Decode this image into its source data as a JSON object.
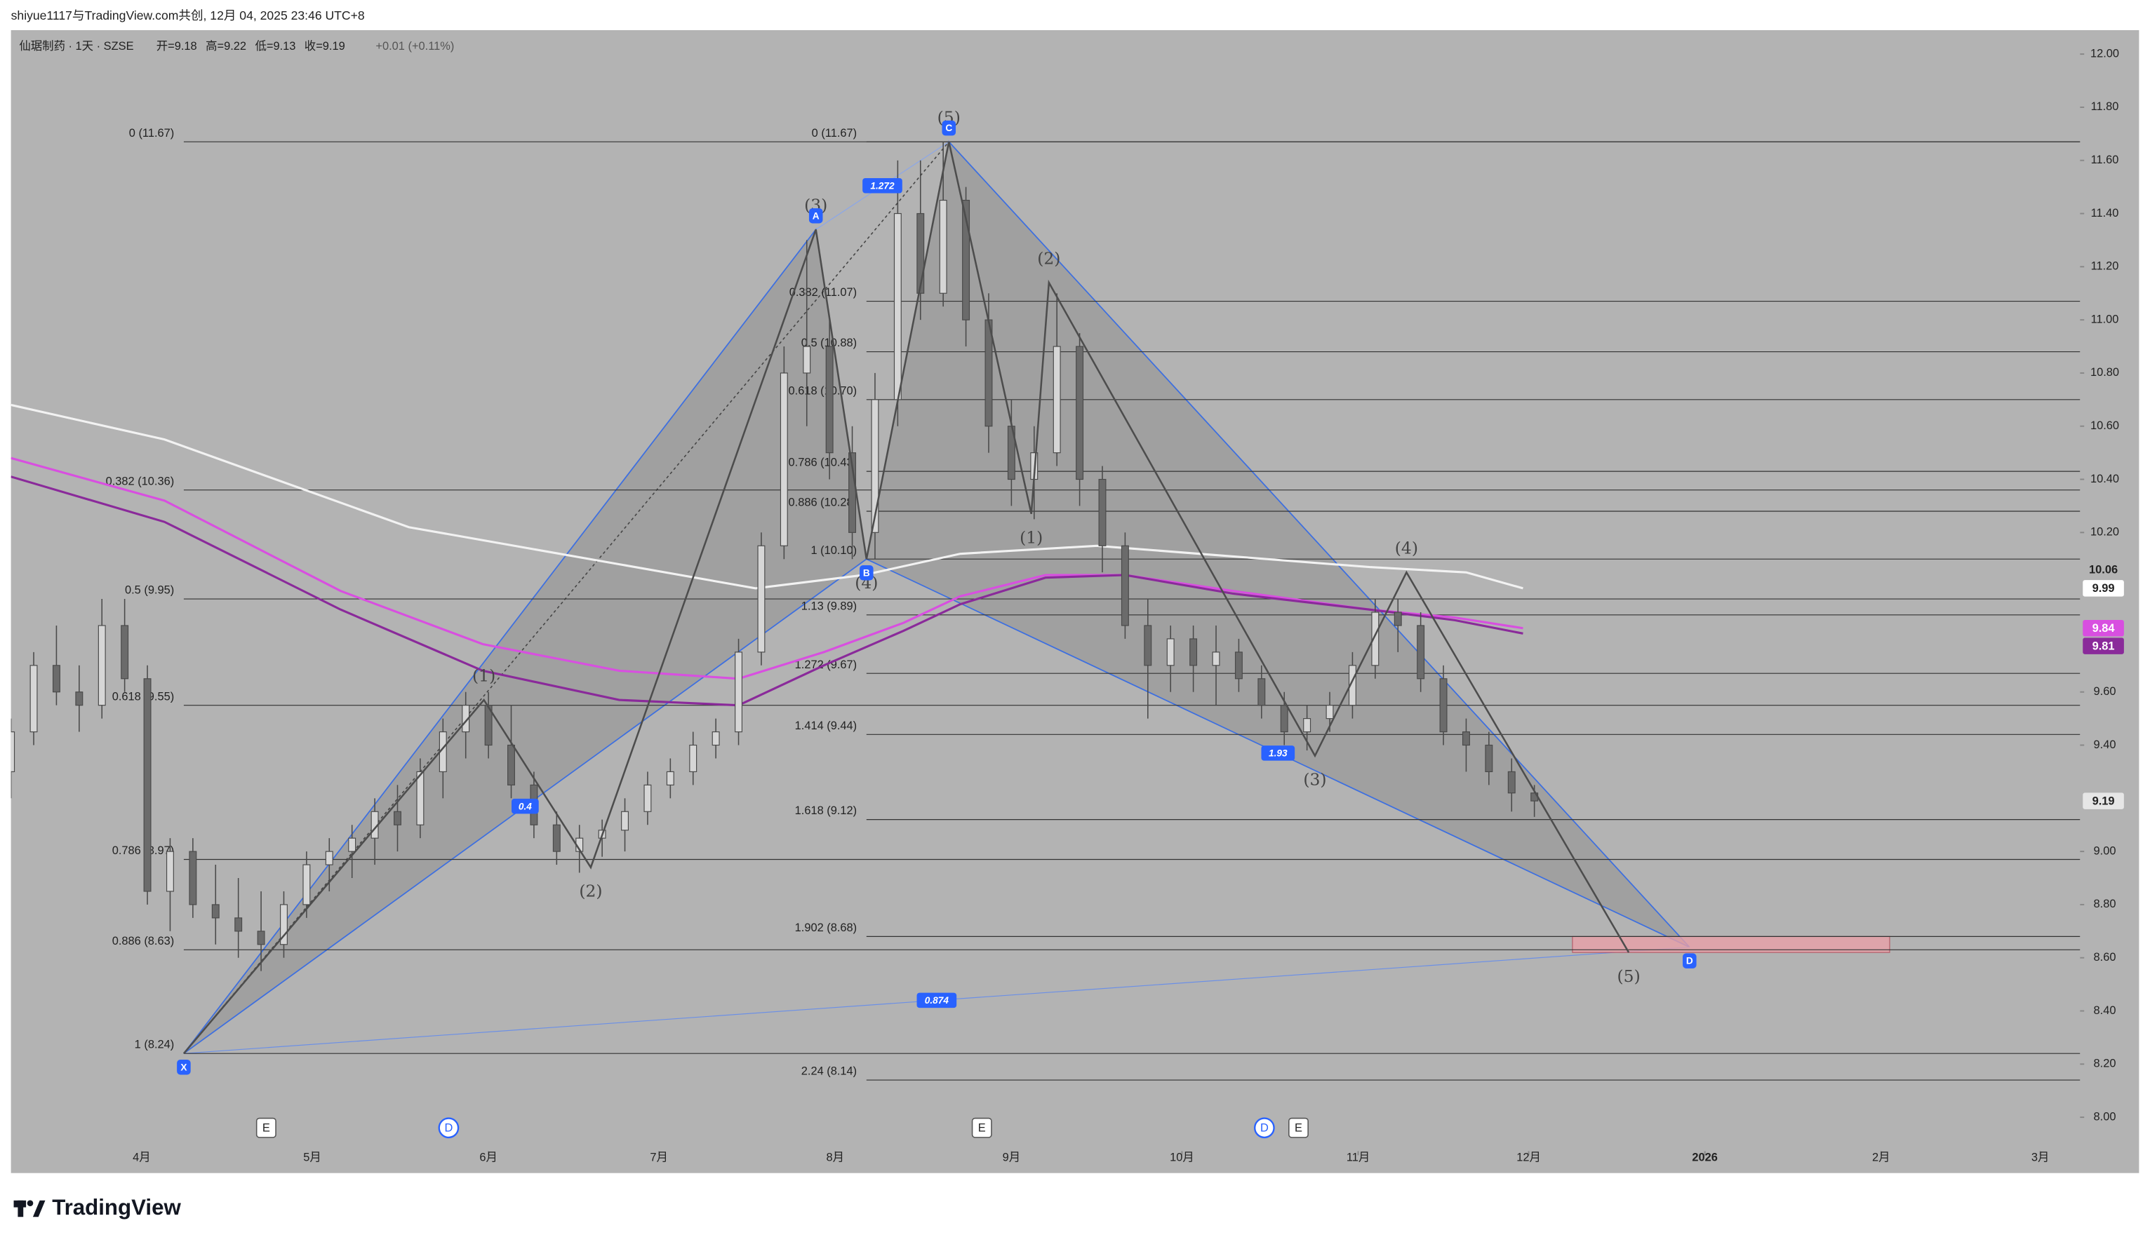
{
  "header": {
    "attribution": "shiyue1117与TradingView.com共创, 12月 04, 2025 23:46 UTC+8",
    "symbol": "仙琚制药 · 1天 · SZSE",
    "open": "开=9.18",
    "high": "高=9.22",
    "low": "低=9.13",
    "close": "收=9.19",
    "change": "+0.01 (+0.11%)"
  },
  "logo": "TradingView",
  "chart_data": {
    "type": "candlestick",
    "xlim": [
      68,
      432
    ],
    "ylim": [
      7.79,
      12.09
    ],
    "yticks": [
      {
        "value": 12,
        "label": "12.00"
      },
      {
        "value": 11.8,
        "label": "11.80"
      },
      {
        "value": 11.6,
        "label": "11.60"
      },
      {
        "value": 11.4,
        "label": "11.40"
      },
      {
        "value": 11.2,
        "label": "11.20"
      },
      {
        "value": 11,
        "label": "11.00"
      },
      {
        "value": 10.8,
        "label": "10.80"
      },
      {
        "value": 10.6,
        "label": "10.60"
      },
      {
        "value": 10.4,
        "label": "10.40"
      },
      {
        "value": 10.2,
        "label": "10.20"
      },
      {
        "value": 9.6,
        "label": "9.60"
      },
      {
        "value": 9.4,
        "label": "9.40"
      },
      {
        "value": 9,
        "label": "9.00"
      },
      {
        "value": 8.8,
        "label": "8.80"
      },
      {
        "value": 8.6,
        "label": "8.60"
      },
      {
        "value": 8.4,
        "label": "8.40"
      },
      {
        "value": 8.2,
        "label": "8.20"
      },
      {
        "value": 8,
        "label": "8.00"
      }
    ],
    "xticks": [
      {
        "value": 91,
        "label": "4月"
      },
      {
        "value": 121,
        "label": "5月"
      },
      {
        "value": 152,
        "label": "6月"
      },
      {
        "value": 182,
        "label": "7月"
      },
      {
        "value": 213,
        "label": "8月"
      },
      {
        "value": 244,
        "label": "9月"
      },
      {
        "value": 274,
        "label": "10月"
      },
      {
        "value": 305,
        "label": "11月"
      },
      {
        "value": 335,
        "label": "12月"
      },
      {
        "value": 366,
        "label": "2026",
        "bold": true
      },
      {
        "value": 397,
        "label": "2月"
      },
      {
        "value": 425,
        "label": "3月"
      }
    ],
    "candles": {
      "up_color": "#d6d6d6",
      "down_color": "#6b6b6b",
      "outline": "#4a4a4a",
      "x": [
        68,
        72,
        76,
        80,
        84,
        88,
        92,
        96,
        100,
        104,
        108,
        112,
        116,
        120,
        124,
        128,
        132,
        136,
        140,
        144,
        148,
        152,
        156,
        160,
        164,
        168,
        172,
        176,
        180,
        184,
        188,
        192,
        196,
        200,
        204,
        208,
        212,
        216,
        220,
        224,
        228,
        232,
        236,
        240,
        244,
        248,
        252,
        256,
        260,
        264,
        268,
        272,
        276,
        280,
        284,
        288,
        292,
        296,
        300,
        304,
        308,
        312,
        316,
        320,
        324,
        328,
        332,
        336
      ],
      "open": [
        9.3,
        9.45,
        9.7,
        9.6,
        9.55,
        9.85,
        9.65,
        8.85,
        9.0,
        8.8,
        8.75,
        8.7,
        8.65,
        8.8,
        8.95,
        9.0,
        9.05,
        9.15,
        9.1,
        9.3,
        9.45,
        9.55,
        9.4,
        9.25,
        9.1,
        9.0,
        9.05,
        9.08,
        9.15,
        9.25,
        9.3,
        9.4,
        9.45,
        9.75,
        10.15,
        10.8,
        10.9,
        10.5,
        10.2,
        10.7,
        11.4,
        11.1,
        11.45,
        11.0,
        10.6,
        10.4,
        10.5,
        10.9,
        10.4,
        10.15,
        9.85,
        9.7,
        9.8,
        9.7,
        9.75,
        9.65,
        9.55,
        9.45,
        9.5,
        9.55,
        9.7,
        9.9,
        9.85,
        9.65,
        9.45,
        9.4,
        9.3,
        9.22
      ],
      "high": [
        9.5,
        9.75,
        9.85,
        9.7,
        9.95,
        9.95,
        9.7,
        9.05,
        9.05,
        8.95,
        8.9,
        8.85,
        8.85,
        9.0,
        9.05,
        9.1,
        9.2,
        9.25,
        9.35,
        9.5,
        9.6,
        9.6,
        9.55,
        9.3,
        9.15,
        9.1,
        9.12,
        9.2,
        9.3,
        9.35,
        9.45,
        9.5,
        9.8,
        10.2,
        10.9,
        11.3,
        11.0,
        10.6,
        10.8,
        11.6,
        11.6,
        11.67,
        11.5,
        11.1,
        10.7,
        10.6,
        11.1,
        10.95,
        10.45,
        10.2,
        9.95,
        9.85,
        9.85,
        9.85,
        9.8,
        9.7,
        9.6,
        9.55,
        9.6,
        9.75,
        9.95,
        9.95,
        9.9,
        9.7,
        9.5,
        9.45,
        9.35,
        9.25
      ],
      "low": [
        9.2,
        9.4,
        9.55,
        9.45,
        9.5,
        9.6,
        8.8,
        8.7,
        8.75,
        8.65,
        8.6,
        8.55,
        8.6,
        8.75,
        8.85,
        8.9,
        8.95,
        9.0,
        9.05,
        9.2,
        9.35,
        9.35,
        9.2,
        9.05,
        8.95,
        8.92,
        8.98,
        9.0,
        9.1,
        9.2,
        9.25,
        9.35,
        9.4,
        9.7,
        10.1,
        10.6,
        10.4,
        10.1,
        10.1,
        10.6,
        11.0,
        11.05,
        10.9,
        10.5,
        10.3,
        10.25,
        10.45,
        10.3,
        10.05,
        9.8,
        9.5,
        9.6,
        9.6,
        9.55,
        9.6,
        9.5,
        9.4,
        9.38,
        9.45,
        9.5,
        9.65,
        9.75,
        9.6,
        9.4,
        9.3,
        9.25,
        9.15,
        9.13
      ],
      "close": [
        9.45,
        9.7,
        9.6,
        9.55,
        9.85,
        9.65,
        8.85,
        9.0,
        8.8,
        8.75,
        8.7,
        8.65,
        8.8,
        8.95,
        9.0,
        9.05,
        9.15,
        9.1,
        9.3,
        9.45,
        9.55,
        9.4,
        9.25,
        9.1,
        9.0,
        9.05,
        9.08,
        9.15,
        9.25,
        9.3,
        9.4,
        9.45,
        9.75,
        10.15,
        10.8,
        10.9,
        10.5,
        10.2,
        10.7,
        11.4,
        11.1,
        11.45,
        11.0,
        10.6,
        10.4,
        10.5,
        10.9,
        10.4,
        10.15,
        9.85,
        9.7,
        9.8,
        9.7,
        9.75,
        9.65,
        9.55,
        9.45,
        9.5,
        9.55,
        9.7,
        9.9,
        9.85,
        9.65,
        9.45,
        9.4,
        9.3,
        9.22,
        9.19
      ]
    },
    "moving_averages": [
      {
        "color": "#f2f2f2",
        "x": [
          68,
          95,
          138,
          199,
          218,
          235,
          259,
          283,
          307,
          324,
          334
        ],
        "values": [
          10.68,
          10.55,
          10.22,
          9.99,
          10.04,
          10.12,
          10.15,
          10.11,
          10.07,
          10.05,
          9.99
        ]
      },
      {
        "color": "#d84fe0",
        "x": [
          68,
          95,
          126,
          151,
          175,
          196,
          211,
          225,
          235,
          250,
          264,
          283,
          307,
          322,
          334
        ],
        "values": [
          10.48,
          10.32,
          9.98,
          9.78,
          9.68,
          9.65,
          9.75,
          9.86,
          9.96,
          10.04,
          10.04,
          9.98,
          9.91,
          9.88,
          9.84
        ]
      },
      {
        "color": "#8a2a9a",
        "x": [
          68,
          95,
          126,
          151,
          175,
          196,
          211,
          225,
          235,
          250,
          264,
          283,
          307,
          322,
          334
        ],
        "values": [
          10.41,
          10.24,
          9.91,
          9.68,
          9.57,
          9.55,
          9.7,
          9.83,
          9.93,
          10.03,
          10.04,
          9.97,
          9.91,
          9.87,
          9.82
        ]
      }
    ],
    "price_tags": [
      {
        "value": 10.06,
        "bg": "none",
        "fg": "#222222"
      },
      {
        "value": 9.99,
        "bg": "#ffffff",
        "fg": "#222222"
      },
      {
        "value": 9.84,
        "bg": "#d84fe0",
        "fg": "#ffffff"
      },
      {
        "value": 9.81,
        "bg": "#8a2a9a",
        "fg": "#ffffff"
      },
      {
        "value": 9.19,
        "bg": "#e6e6e6",
        "fg": "#222222"
      }
    ],
    "harmonic": {
      "points": [
        {
          "name": "X",
          "x": 98.4,
          "price": 8.24
        },
        {
          "name": "A",
          "x": 209.6,
          "price": 11.34
        },
        {
          "name": "B",
          "x": 218.5,
          "price": 10.1
        },
        {
          "name": "C",
          "x": 233.0,
          "price": 11.67
        },
        {
          "name": "D",
          "x": 363.3,
          "price": 8.64
        }
      ],
      "ratios": [
        {
          "label": "1.272",
          "between": [
            "A",
            "C"
          ]
        },
        {
          "label": "0.4",
          "between": [
            "X",
            "B"
          ]
        },
        {
          "label": "1.93",
          "between": [
            "B",
            "D"
          ]
        },
        {
          "label": "0.874",
          "between": [
            "X",
            "D"
          ]
        }
      ]
    },
    "fib_sets": [
      {
        "anchor": "X",
        "levels": [
          {
            "label": "0 (11.67)",
            "price": 11.67
          },
          {
            "label": "0.382 (10.36)",
            "price": 10.36
          },
          {
            "label": "0.5 (9.95)",
            "price": 9.95
          },
          {
            "label": "0.618 (9.55)",
            "price": 9.55
          },
          {
            "label": "0.786 (8.97)",
            "price": 8.97
          },
          {
            "label": "0.886 (8.63)",
            "price": 8.63
          },
          {
            "label": "1 (8.24)",
            "price": 8.24
          }
        ]
      },
      {
        "anchor": "B",
        "levels": [
          {
            "label": "0 (11.67)",
            "price": 11.67
          },
          {
            "label": "0.382 (11.07)",
            "price": 11.07
          },
          {
            "label": "0.5 (10.88)",
            "price": 10.88
          },
          {
            "label": "0.618 (10.70)",
            "price": 10.7
          },
          {
            "label": "0.786 (10.43)",
            "price": 10.43
          },
          {
            "label": "0.886 (10.28)",
            "price": 10.28
          },
          {
            "label": "1 (10.10)",
            "price": 10.1
          },
          {
            "label": "1.13 (9.89)",
            "price": 9.89
          },
          {
            "label": "1.272 (9.67)",
            "price": 9.67
          },
          {
            "label": "1.414 (9.44)",
            "price": 9.44
          },
          {
            "label": "1.618 (9.12)",
            "price": 9.12
          },
          {
            "label": "1.902 (8.68)",
            "price": 8.68
          },
          {
            "label": "2.24 (8.14)",
            "price": 8.14
          }
        ]
      }
    ],
    "waves": [
      {
        "start": {
          "x": 98.4,
          "price": 8.24
        },
        "points": [
          {
            "label": "(1)",
            "x": 151.2,
            "price": 9.57
          },
          {
            "label": "(2)",
            "x": 170.0,
            "price": 8.94
          },
          {
            "label": "(3)",
            "x": 209.6,
            "price": 11.34
          },
          {
            "label": "(4)",
            "x": 218.5,
            "price": 10.1
          },
          {
            "label": "(5)",
            "x": 233.0,
            "price": 11.67
          }
        ]
      },
      {
        "start": {
          "x": 233.0,
          "price": 11.67
        },
        "points": [
          {
            "label": "(1)",
            "x": 247.5,
            "price": 10.27
          },
          {
            "label": "(2)",
            "x": 250.6,
            "price": 11.14
          },
          {
            "label": "(3)",
            "x": 297.4,
            "price": 9.36
          },
          {
            "label": "(4)",
            "x": 313.5,
            "price": 10.05
          },
          {
            "label": "(5)",
            "x": 352.6,
            "price": 8.62
          }
        ]
      }
    ],
    "zone": {
      "x": [
        342.7,
        398.5
      ],
      "price": [
        8.62,
        8.68
      ],
      "color": "#e8a0a8"
    },
    "events": [
      {
        "label": "E",
        "x": 112.9,
        "kind": "earnings"
      },
      {
        "label": "D",
        "x": 145.0,
        "kind": "dividend"
      },
      {
        "label": "E",
        "x": 238.8,
        "kind": "earnings"
      },
      {
        "label": "D",
        "x": 288.5,
        "kind": "dividend"
      },
      {
        "label": "E",
        "x": 294.5,
        "kind": "earnings"
      }
    ]
  }
}
